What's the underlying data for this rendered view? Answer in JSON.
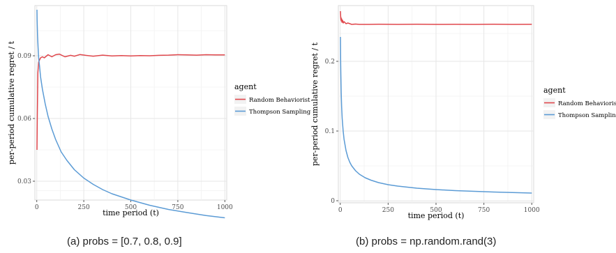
{
  "chart_data": [
    {
      "type": "line",
      "title": "",
      "xlabel": "time period (t)",
      "ylabel": "per-period cumulative regret / t",
      "xlim": [
        -10,
        1010
      ],
      "ylim": [
        0.021,
        0.114
      ],
      "xticks": [
        0,
        250,
        500,
        750,
        1000
      ],
      "xtick_labels": [
        "0",
        "250",
        "500",
        "750",
        "1000"
      ],
      "yticks": [
        0.03,
        0.06,
        0.09
      ],
      "ytick_labels": [
        "0.03",
        "0.06",
        "0.09"
      ],
      "grid": true,
      "legend_title": "agent",
      "legend_position": "right",
      "series": [
        {
          "name": "Random Behaviorist",
          "color": "#e0474c",
          "x": [
            1,
            3,
            6,
            10,
            15,
            20,
            30,
            40,
            60,
            80,
            100,
            120,
            150,
            180,
            200,
            230,
            260,
            300,
            350,
            400,
            450,
            500,
            550,
            600,
            650,
            700,
            750,
            800,
            850,
            900,
            950,
            1000
          ],
          "y": [
            0.045,
            0.062,
            0.082,
            0.087,
            0.088,
            0.089,
            0.0895,
            0.089,
            0.0905,
            0.0895,
            0.0905,
            0.0908,
            0.0895,
            0.0902,
            0.0898,
            0.0906,
            0.0902,
            0.0898,
            0.0903,
            0.0899,
            0.0901,
            0.0899,
            0.0901,
            0.09,
            0.0902,
            0.0903,
            0.0905,
            0.0904,
            0.0903,
            0.0905,
            0.0904,
            0.0904
          ]
        },
        {
          "name": "Thompson Sampling",
          "color": "#5b9bd5",
          "x": [
            1,
            2,
            4,
            7,
            10,
            15,
            20,
            30,
            45,
            60,
            80,
            100,
            130,
            160,
            200,
            250,
            300,
            350,
            400,
            500,
            600,
            700,
            800,
            900,
            1000
          ],
          "y": [
            0.112,
            0.107,
            0.1,
            0.094,
            0.089,
            0.085,
            0.08,
            0.074,
            0.067,
            0.061,
            0.055,
            0.05,
            0.044,
            0.04,
            0.0355,
            0.0315,
            0.0285,
            0.026,
            0.024,
            0.021,
            0.0185,
            0.0165,
            0.015,
            0.0136,
            0.0125
          ]
        }
      ]
    },
    {
      "type": "line",
      "title": "",
      "xlabel": "time period (t)",
      "ylabel": "per-period cumulative regret / t",
      "xlim": [
        -10,
        1010
      ],
      "ylim": [
        -0.003,
        0.28
      ],
      "xticks": [
        0,
        250,
        500,
        750,
        1000
      ],
      "xtick_labels": [
        "0",
        "250",
        "500",
        "750",
        "1000"
      ],
      "yticks": [
        0,
        0.1,
        0.2
      ],
      "ytick_labels": [
        "0",
        "0.1",
        "0.2"
      ],
      "grid": true,
      "legend_title": "agent",
      "legend_position": "right",
      "series": [
        {
          "name": "Random Behaviorist",
          "color": "#e0474c",
          "x": [
            1,
            2,
            3,
            4,
            5,
            7,
            9,
            12,
            16,
            20,
            30,
            40,
            60,
            80,
            100,
            150,
            200,
            300,
            400,
            500,
            600,
            700,
            800,
            900,
            1000
          ],
          "y": [
            0.272,
            0.265,
            0.26,
            0.263,
            0.258,
            0.261,
            0.256,
            0.259,
            0.255,
            0.257,
            0.254,
            0.255,
            0.253,
            0.2535,
            0.253,
            0.253,
            0.2532,
            0.253,
            0.2533,
            0.253,
            0.2531,
            0.253,
            0.2532,
            0.253,
            0.2531
          ]
        },
        {
          "name": "Thompson Sampling",
          "color": "#5b9bd5",
          "x": [
            1,
            2,
            3,
            5,
            7,
            10,
            15,
            20,
            30,
            40,
            50,
            60,
            80,
            100,
            130,
            160,
            200,
            250,
            300,
            400,
            500,
            600,
            700,
            800,
            900,
            1000
          ],
          "y": [
            0.235,
            0.2,
            0.18,
            0.155,
            0.135,
            0.118,
            0.1,
            0.088,
            0.072,
            0.062,
            0.055,
            0.05,
            0.043,
            0.038,
            0.033,
            0.0295,
            0.026,
            0.023,
            0.021,
            0.018,
            0.016,
            0.0145,
            0.0135,
            0.0125,
            0.0117,
            0.011
          ]
        }
      ]
    }
  ],
  "captions": {
    "a": "(a) probs = [0.7, 0.8, 0.9]",
    "b": "(b) probs = np.random.rand(3)"
  }
}
